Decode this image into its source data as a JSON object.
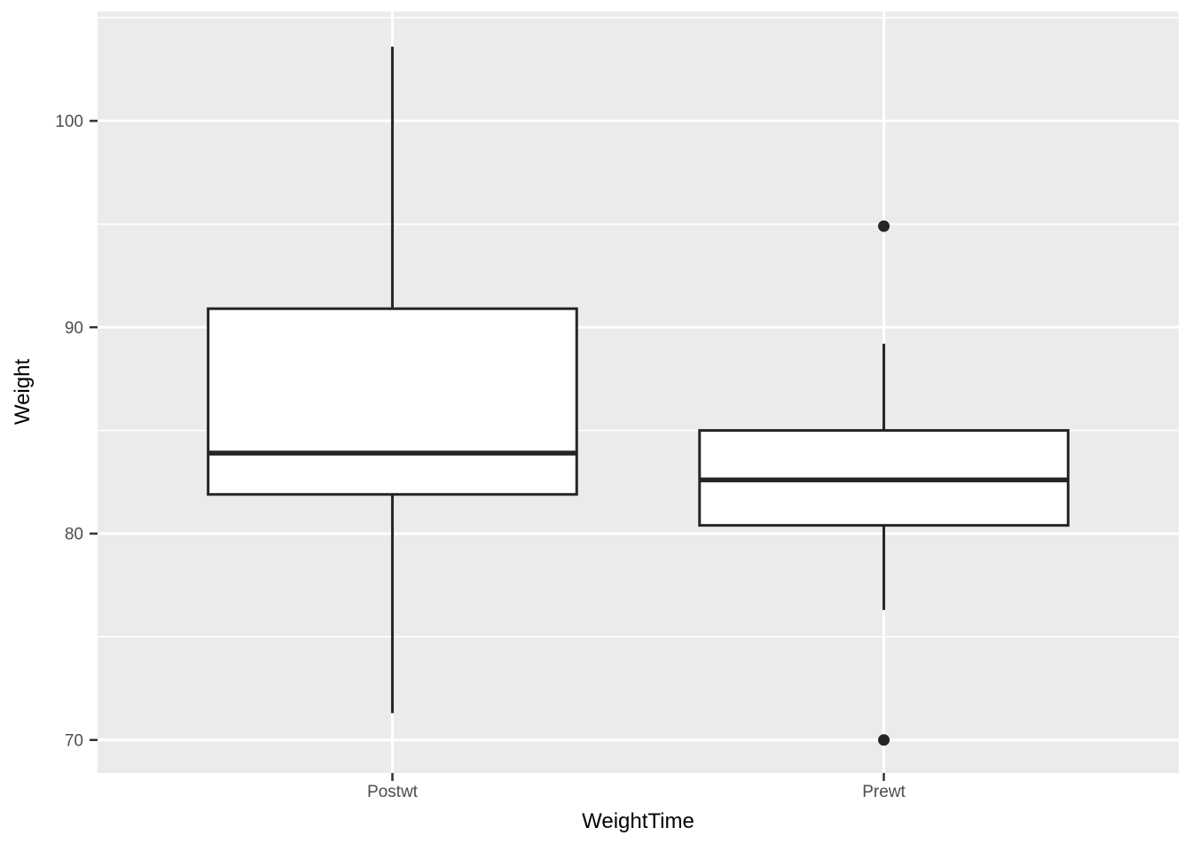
{
  "chart_data": {
    "type": "boxplot",
    "title": "",
    "xlabel": "WeightTime",
    "ylabel": "Weight",
    "categories": [
      "Postwt",
      "Prewt"
    ],
    "boxes": [
      {
        "category": "Postwt",
        "whisker_low": 71.3,
        "q1": 81.9,
        "median": 83.9,
        "q3": 90.9,
        "whisker_high": 103.6,
        "outliers": []
      },
      {
        "category": "Prewt",
        "whisker_low": 76.3,
        "q1": 80.4,
        "median": 82.6,
        "q3": 85.0,
        "whisker_high": 89.2,
        "outliers": [
          70.0,
          94.9
        ]
      }
    ],
    "ylim": [
      68.4,
      105.3
    ],
    "yticks": [
      70,
      80,
      90,
      100
    ],
    "yticks_minor": [
      75,
      85,
      95,
      105
    ],
    "grid": "major-and-minor-horizontal, major-vertical-at-categories",
    "legend": "none",
    "style": {
      "panel_background": "#EBEBEB",
      "grid_color": "#FFFFFF",
      "box_stroke": "#252525",
      "box_fill": "#FFFFFF",
      "median_color": "#252525",
      "outlier_color": "#252525",
      "tick_mark_color": "#333333",
      "tick_label_color": "#4D4D4D",
      "axis_title_color": "#000000"
    }
  }
}
